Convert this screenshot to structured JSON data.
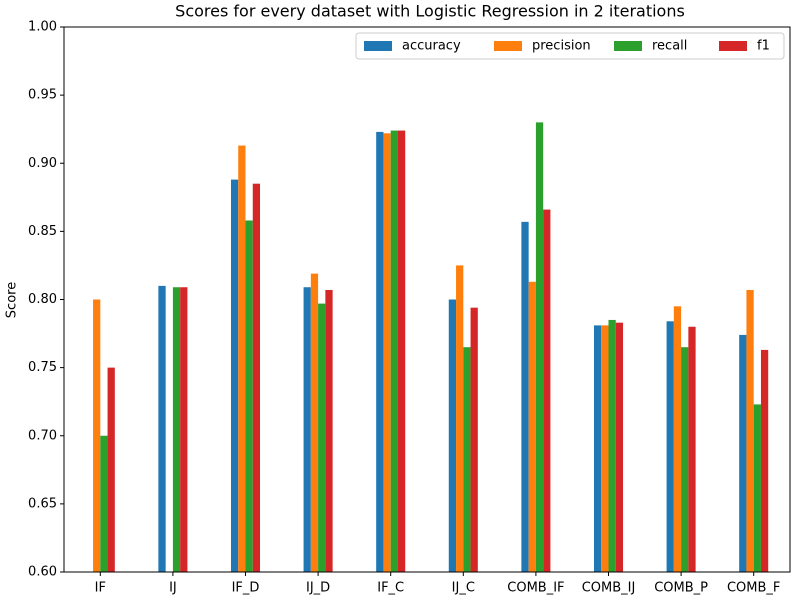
{
  "chart_data": {
    "type": "bar",
    "title": "Scores for every dataset with Logistic Regression in 2 iterations",
    "y_label": "Score",
    "categories": [
      "IF",
      "IJ",
      "IF_D",
      "IJ_D",
      "IF_C",
      "IJ_C",
      "COMB_IF",
      "COMB_IJ",
      "COMB_P",
      "COMB_F"
    ],
    "series": [
      {
        "name": "accuracy",
        "color": "#1f77b4",
        "values": [
          null,
          0.81,
          0.888,
          0.809,
          0.923,
          0.8,
          0.857,
          0.781,
          0.784,
          0.774
        ]
      },
      {
        "name": "precision",
        "color": "#ff7f0e",
        "values": [
          0.8,
          null,
          0.913,
          0.819,
          0.922,
          0.825,
          0.813,
          0.781,
          0.795,
          0.807
        ]
      },
      {
        "name": "recall",
        "color": "#2ca02c",
        "values": [
          0.7,
          0.809,
          0.858,
          0.797,
          0.924,
          0.765,
          0.93,
          0.785,
          0.765,
          0.723
        ]
      },
      {
        "name": "f1",
        "color": "#d62728",
        "values": [
          0.75,
          0.809,
          0.885,
          0.807,
          0.924,
          0.794,
          0.866,
          0.783,
          0.78,
          0.763
        ]
      }
    ],
    "ylim": [
      0.6,
      1.0
    ],
    "yticks": [
      {
        "value": 0.6,
        "label": "0.60"
      },
      {
        "value": 0.65,
        "label": "0.65"
      },
      {
        "value": 0.7,
        "label": "0.70"
      },
      {
        "value": 0.75,
        "label": "0.75"
      },
      {
        "value": 0.8,
        "label": "0.80"
      },
      {
        "value": 0.85,
        "label": "0.85"
      },
      {
        "value": 0.9,
        "label": "0.90"
      },
      {
        "value": 0.95,
        "label": "0.95"
      },
      {
        "value": 1.0,
        "label": "1.00"
      }
    ],
    "legend": "upper right"
  }
}
